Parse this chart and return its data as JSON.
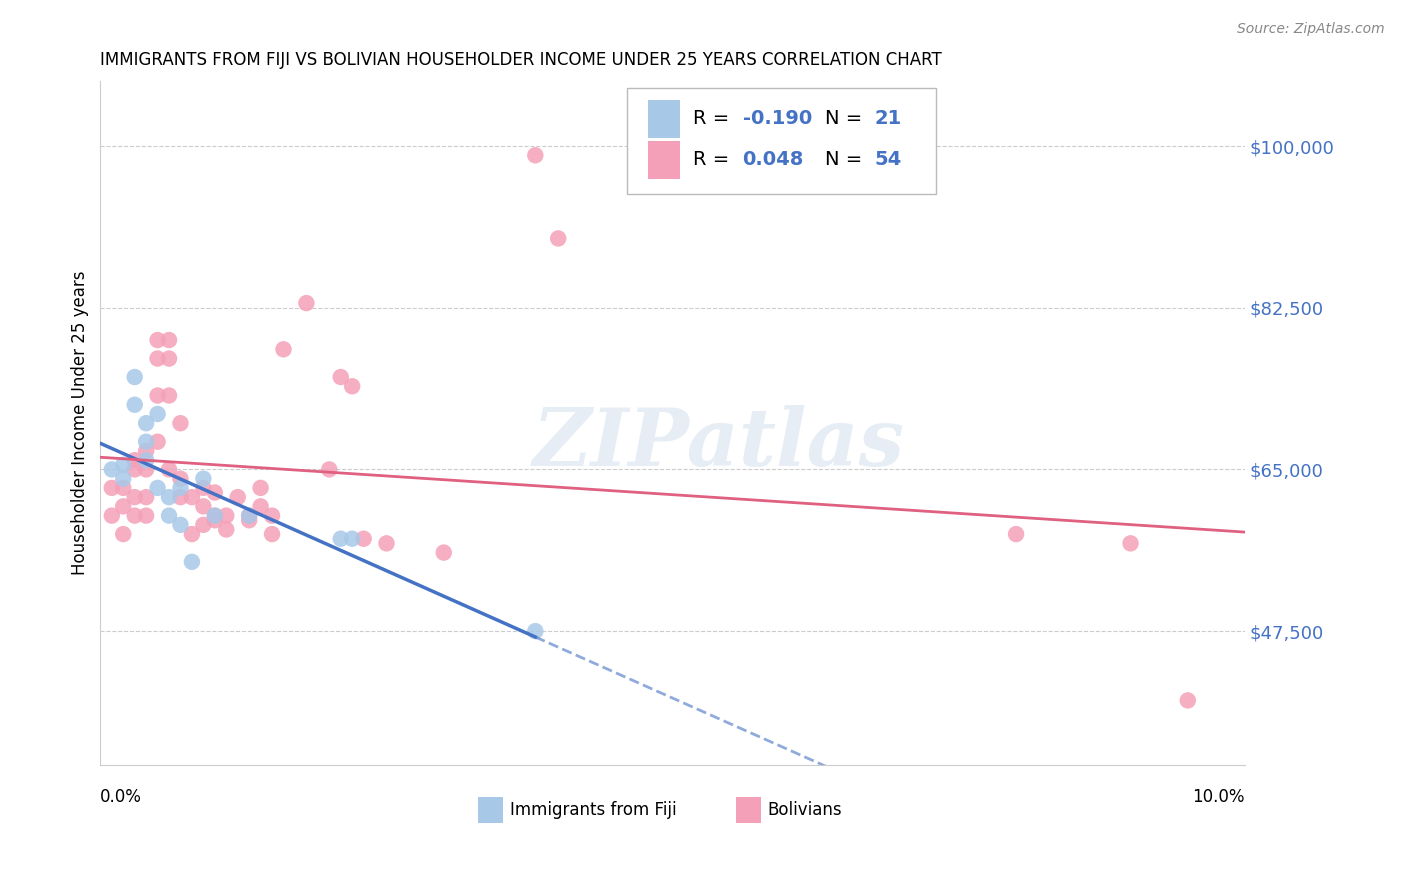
{
  "title": "IMMIGRANTS FROM FIJI VS BOLIVIAN HOUSEHOLDER INCOME UNDER 25 YEARS CORRELATION CHART",
  "source": "Source: ZipAtlas.com",
  "ylabel": "Householder Income Under 25 years",
  "ytick_labels": [
    "$47,500",
    "$65,000",
    "$82,500",
    "$100,000"
  ],
  "ytick_values": [
    47500,
    65000,
    82500,
    100000
  ],
  "xmin": 0.0,
  "xmax": 0.1,
  "ymin": 33000,
  "ymax": 107000,
  "fiji_R": -0.19,
  "fiji_N": 21,
  "bolivia_R": 0.048,
  "bolivia_N": 54,
  "fiji_color": "#a8c8e8",
  "bolivia_color": "#f4a0b8",
  "fiji_line_color": "#4472c4",
  "bolivia_line_color": "#e06080",
  "watermark": "ZIPatlas",
  "fiji_x": [
    0.001,
    0.002,
    0.002,
    0.003,
    0.003,
    0.004,
    0.004,
    0.004,
    0.005,
    0.005,
    0.006,
    0.006,
    0.007,
    0.007,
    0.008,
    0.009,
    0.01,
    0.013,
    0.021,
    0.022,
    0.038
  ],
  "fiji_y": [
    65000,
    64000,
    65500,
    72000,
    75000,
    70000,
    68000,
    66000,
    71000,
    63000,
    62000,
    60000,
    63000,
    59000,
    55000,
    64000,
    60000,
    60000,
    57500,
    57500,
    47500
  ],
  "bolivia_x": [
    0.001,
    0.001,
    0.002,
    0.002,
    0.002,
    0.003,
    0.003,
    0.003,
    0.003,
    0.004,
    0.004,
    0.004,
    0.004,
    0.005,
    0.005,
    0.005,
    0.005,
    0.006,
    0.006,
    0.006,
    0.006,
    0.007,
    0.007,
    0.007,
    0.008,
    0.008,
    0.009,
    0.009,
    0.009,
    0.01,
    0.01,
    0.01,
    0.011,
    0.011,
    0.012,
    0.013,
    0.013,
    0.014,
    0.014,
    0.015,
    0.015,
    0.016,
    0.018,
    0.02,
    0.021,
    0.022,
    0.023,
    0.025,
    0.03,
    0.038,
    0.04,
    0.08,
    0.09,
    0.095
  ],
  "bolivia_y": [
    60000,
    63000,
    58000,
    61000,
    63000,
    60000,
    62000,
    65000,
    66000,
    60000,
    62000,
    65000,
    67000,
    68000,
    73000,
    77000,
    79000,
    65000,
    73000,
    77000,
    79000,
    62000,
    64000,
    70000,
    58000,
    62000,
    59000,
    61000,
    63000,
    60000,
    59500,
    62500,
    60000,
    58500,
    62000,
    60000,
    59500,
    61000,
    63000,
    60000,
    58000,
    78000,
    83000,
    65000,
    75000,
    74000,
    57500,
    57000,
    56000,
    99000,
    90000,
    58000,
    57000,
    40000
  ]
}
